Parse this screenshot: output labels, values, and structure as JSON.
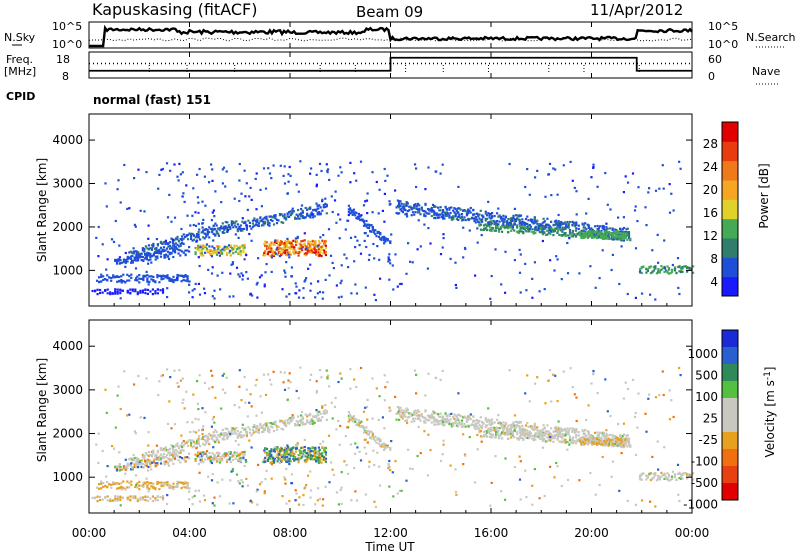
{
  "header": {
    "station": "Kapuskasing (fitACF)",
    "beam": "Beam 09",
    "date": "11/Apr/2012"
  },
  "noise_panel": {
    "left_label": "N.Sky",
    "right_label": "N.Search",
    "left_ticks": [
      "10^5",
      "10^0"
    ],
    "right_ticks": [
      "10^5",
      "10^0"
    ]
  },
  "freq_panel": {
    "left_label_1": "Freq.",
    "left_label_2": "[MHz]",
    "left_ticks": [
      "18",
      "8"
    ],
    "right_label": "Nave",
    "right_ticks": [
      "60",
      "0"
    ],
    "cpid_label": "CPID",
    "mode_text": "normal (fast) 151"
  },
  "chart_data": [
    {
      "type": "heatmap",
      "name": "power",
      "ylabel": "Slant Range [km]",
      "ylim": [
        180,
        4600
      ],
      "yticks": [
        "1000",
        "2000",
        "3000",
        "4000"
      ],
      "xlim": [
        "00:00",
        "24:00"
      ],
      "colorbar": {
        "label": "Power [dB]",
        "tick_labels": [
          "4",
          "8",
          "12",
          "16",
          "20",
          "24",
          "28"
        ],
        "colors": [
          "#1a1aff",
          "#1f4fd8",
          "#2f7d6a",
          "#44aa55",
          "#e0d22a",
          "#f5a623",
          "#f07a1a",
          "#e83c0e",
          "#e00000"
        ]
      }
    },
    {
      "type": "heatmap",
      "name": "velocity",
      "ylabel": "Slant Range [km]",
      "ylim": [
        180,
        4600
      ],
      "yticks": [
        "1000",
        "2000",
        "3000",
        "4000"
      ],
      "xlim": [
        "00:00",
        "24:00"
      ],
      "colorbar": {
        "label": "Velocity [m s^-1]",
        "tick_labels": [
          "1000",
          "500",
          "100",
          "25",
          "-25",
          "-100",
          "-500",
          "-1000"
        ],
        "colors": [
          "#1a2ad6",
          "#2a5fd0",
          "#2f8a5a",
          "#55c040",
          "#c8c8c0",
          "#c8c8c0",
          "#e8a020",
          "#f07010",
          "#e84010",
          "#e00000"
        ]
      }
    }
  ],
  "x_axis": {
    "label": "Time UT",
    "ticks": [
      "00:00",
      "04:00",
      "08:00",
      "12:00",
      "16:00",
      "20:00",
      "00:00"
    ]
  }
}
